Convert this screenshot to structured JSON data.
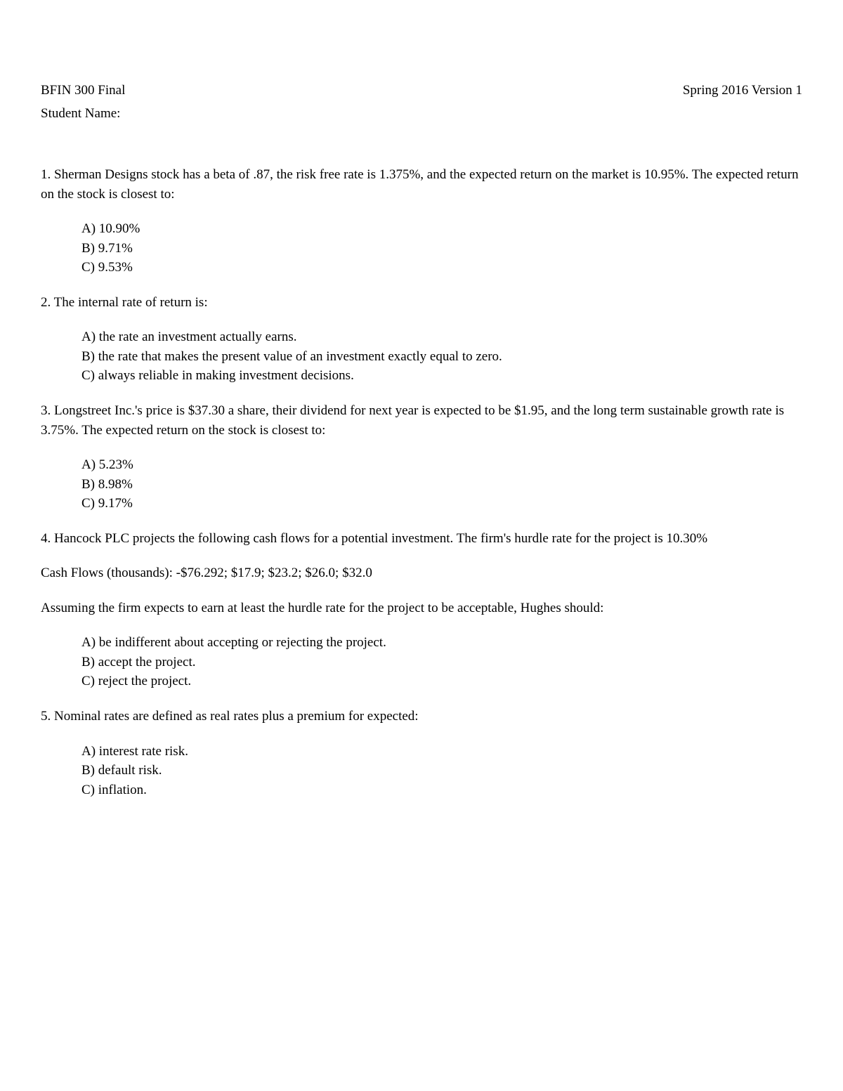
{
  "header": {
    "course": "BFIN 300  Final",
    "version": "Spring 2016 Version 1",
    "student_name_label": "Student Name:"
  },
  "questions": [
    {
      "number": "1.",
      "text": "Sherman Designs stock has a beta of .87, the risk free rate is 1.375%, and the expected return on the market is 10.95%. The expected return on the stock is closest to:",
      "choices": [
        "A) 10.90%",
        "B) 9.71%",
        "C) 9.53%"
      ]
    },
    {
      "number": "2.",
      "text": "The internal rate of return is:",
      "choices": [
        "A) the rate an investment actually earns.",
        "B) the rate that makes the present value of an investment exactly equal to zero.",
        "C) always reliable in making investment decisions."
      ]
    },
    {
      "number": "3.",
      "text": "Longstreet Inc.'s price is $37.30 a share, their dividend for next year is expected to be $1.95, and the long term sustainable growth rate is 3.75%. The expected return on the stock is closest to:",
      "choices": [
        "A) 5.23%",
        "B) 8.98%",
        "C) 9.17%"
      ]
    },
    {
      "number": "4.",
      "text": "Hancock PLC projects the following cash flows for a potential investment. The firm's hurdle rate for the project is 10.30%",
      "extra1": "Cash Flows (thousands): -$76.292; $17.9; $23.2; $26.0; $32.0",
      "extra2": "Assuming the firm expects to earn at least the hurdle rate for the project to be acceptable, Hughes should:",
      "choices": [
        "A) be indifferent about accepting or rejecting the project.",
        "B) accept the project.",
        "C) reject the project."
      ]
    },
    {
      "number": "5.",
      "text": "Nominal rates are defined as real rates plus a premium for expected:",
      "choices": [
        "A) interest rate risk.",
        "B) default risk.",
        "C) inflation."
      ]
    }
  ]
}
